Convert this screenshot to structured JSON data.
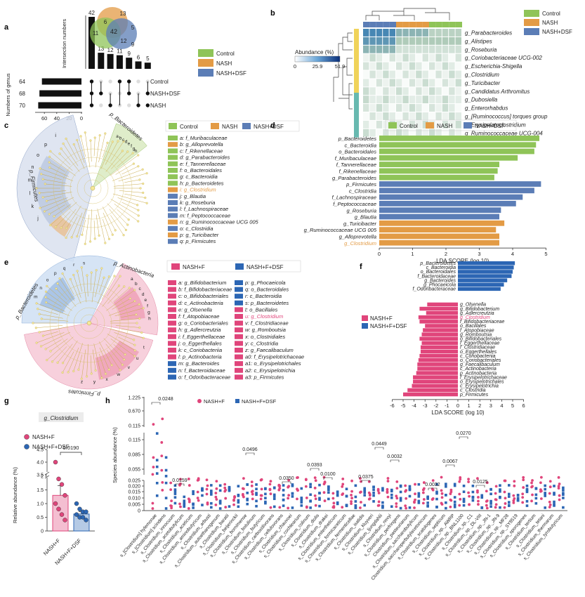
{
  "panel_labels": {
    "a": "a",
    "b": "b",
    "c": "c",
    "d": "d",
    "e": "e",
    "f": "f",
    "g": "g",
    "h": "h"
  },
  "colors": {
    "control": "#8fc458",
    "nash": "#e39b45",
    "dsf": "#5b7db6",
    "nashf": "#e0457b",
    "nashf_dsf": "#2c66b4"
  },
  "panel_a": {
    "ylabel": "Intersection numbers",
    "xlabel": "Numbers of genus",
    "venn": {
      "control": "11",
      "nash": "13",
      "dsf": "9",
      "control_nash": "6",
      "nash_dsf": "5",
      "control_dsf": "12",
      "all": "42"
    },
    "groups": [
      {
        "name": "Control",
        "count": "64"
      },
      {
        "name": "NASH+DSF",
        "count": "68"
      },
      {
        "name": "NASH",
        "count": "70"
      }
    ],
    "bar_ticks": [
      "60",
      "40",
      "20",
      "0"
    ],
    "legend": [
      "Control",
      "NASH",
      "NASH+DSF"
    ]
  },
  "chart_data": [
    {
      "type": "bar",
      "id": "a-intersections",
      "values": [
        42,
        13,
        12,
        11,
        9,
        6,
        5
      ],
      "ylim": [
        0,
        42
      ]
    },
    {
      "type": "bar",
      "id": "a-set-sizes",
      "categories": [
        "Control",
        "NASH+DSF",
        "NASH"
      ],
      "values": [
        64,
        68,
        70
      ],
      "ylim": [
        0,
        70
      ]
    },
    {
      "type": "heatmap",
      "id": "b",
      "rows": [
        "g_Parabacteroides",
        "g_Alistipes",
        "g_Roseburia",
        "g_Coriobacteriaceae UCG-002",
        "g_Escherichia-Shigella",
        "g_Clostridium",
        "g_Turicibacter",
        "g_Candidatus Arthromitus",
        "g_Dubosiella",
        "g_Enterorhabdus",
        "g_[Ruminococcus] torques group",
        "g_Erysipelatoclostridium",
        "g_Ruminococcaceae UCG-004"
      ],
      "legend_title": "Abundance (%)",
      "scale": [
        "0",
        "25.9",
        "51.9"
      ]
    },
    {
      "type": "bar",
      "id": "d",
      "orientation": "horizontal",
      "xlabel": "LDA SCORE (log 10)",
      "xticks": [
        "0",
        "1",
        "2",
        "3",
        "4",
        "5"
      ],
      "xlim": [
        0,
        5
      ],
      "categories": [
        "p_Bacteroidetes",
        "c_Bacteroidia",
        "o_Bacteroidales",
        "f_Muribaculaceae",
        "f_Tannerellaceae",
        "f_Rikenellaceae",
        "g_Parabacteroides",
        "p_Firmicutes",
        "c_Clostridia",
        "f_Lachnospiraceae",
        "f_Peptococcaceae",
        "g_Roseburia",
        "g_Blautia",
        "g_Turicibacter",
        "g_Ruminococcaceae UCG 005",
        "g_Alloprevotella",
        "g_Clostridium"
      ],
      "values": [
        4.8,
        4.7,
        4.65,
        4.15,
        3.6,
        3.55,
        3.45,
        4.85,
        4.65,
        4.3,
        4.1,
        3.65,
        3.6,
        3.75,
        3.5,
        3.6,
        3.6
      ],
      "groups": [
        "Control",
        "Control",
        "Control",
        "Control",
        "Control",
        "Control",
        "Control",
        "NASH+DSF",
        "NASH+DSF",
        "NASH+DSF",
        "NASH+DSF",
        "NASH+DSF",
        "NASH+DSF",
        "NASH",
        "NASH",
        "NASH",
        "NASH"
      ],
      "legend": [
        "Control",
        "NASH",
        "NASH+DSF"
      ]
    },
    {
      "type": "bar",
      "id": "f",
      "orientation": "horizontal",
      "xlabel": "LDA SCORE (log 10)",
      "xticks": [
        "-6",
        "-5",
        "-4",
        "-3",
        "-2",
        "-1",
        "0",
        "1",
        "2",
        "3",
        "4",
        "5",
        "6"
      ],
      "xlim": [
        -6,
        6
      ],
      "categories": [
        "p_Bacteroidetes",
        "c_Bacteroidia",
        "o_Bacteroidales",
        "f_Bacteroidaceae",
        "g_Bacteroides",
        "g_Phocaeicola",
        "f_Odoribacteraceae",
        "g_Olsenella",
        "g_Bifidobacterium",
        "g_Adlercreutzia",
        "g_Clostridium",
        "f_Bifidobacteriaceae",
        "o_Bacillales",
        "f_Atopobiaceae",
        "g_Romboutsia",
        "o_Bifidobacteriales",
        "f_Eggerthellaceae",
        "f_Clostridiaceae",
        "o_Eggerthellales",
        "c_Coriobacteriia",
        "o_Coriobacteriales",
        "g_Faecalibaculum",
        "c_Actinobacteria",
        "p_Actinobacteria",
        "f_Erysipelotrichaceae",
        "o_Erysipelotrichales",
        "c_Erysipelotrichia",
        "c_Clostridia",
        "p_Firmicutes"
      ],
      "values": [
        5.2,
        5.1,
        5.0,
        4.9,
        4.5,
        4.2,
        3.9,
        -2.8,
        -3.5,
        -2.9,
        -3.6,
        -3.5,
        -3.0,
        -3.2,
        -3.3,
        -3.5,
        -3.3,
        -3.4,
        -3.4,
        -3.5,
        -3.6,
        -3.7,
        -3.7,
        -3.8,
        -4.1,
        -4.1,
        -4.2,
        -4.6,
        -5.0
      ],
      "legend": [
        "NASH+F",
        "NASH+F+DSF"
      ]
    },
    {
      "type": "scatter",
      "id": "g",
      "title": "g_Clostridium",
      "ylabel": "Relative abundance (%)",
      "categories": [
        "NASH+F",
        "NASH+F+DSF"
      ],
      "p_value": "0.0190",
      "yticks": [
        "0",
        "0.5",
        "1.0",
        "1.5",
        "2",
        "3.5",
        "4.0",
        "4.5"
      ],
      "series": [
        {
          "name": "NASH+F",
          "values": [
            4.0,
            1.9,
            1.7,
            1.3,
            1.0,
            0.8,
            0.6,
            0.4
          ]
        },
        {
          "name": "NASH+F+DSF",
          "values": [
            1.0,
            0.8,
            0.7,
            0.7,
            0.6,
            0.5,
            0.5,
            0.4
          ]
        }
      ]
    },
    {
      "type": "scatter",
      "id": "h",
      "ylabel": "Species abundance (%)",
      "yticks": [
        "0",
        "0.005",
        "0.010",
        "0.015",
        "0.020",
        "0.025",
        "0.055",
        "0.085",
        "0.115",
        "0.115",
        "0.670",
        "1.225"
      ],
      "legend": [
        "NASH+F",
        "NASH+F+DSF"
      ],
      "p_values": [
        "0.0248",
        "0.0159",
        "0.0496",
        "0.0350",
        "0.0393",
        "0.0100",
        "0.0375",
        "0.0449",
        "0.0032",
        "0.0270",
        "0.0067",
        "0.0032",
        "0.0125"
      ],
      "categories": [
        "s_[Clostridium] hylemonae",
        "s_[Clostridium] scindens",
        "s_Clostridium_innocuum",
        "s_Clostridium_acetobutylicum",
        "s_Clostridium_aceticum",
        "s_Clostridium_aminobutyricum",
        "s_Clostridium_arbusti",
        "s_Clostridium_autoethanogenum",
        "s_Clostridium_baratii",
        "s_Clostridium_beijerinckii",
        "s_Clostridium_bornimense",
        "s_Clostridium_botulinum",
        "s_Clostridium_butyricum",
        "s_Clostridium_carboxidivorans",
        "s_Clostridium_cellulovorans",
        "s_Clostridium_chauvoei",
        "s_Clostridium_cochlearium",
        "s_Clostridium_colinum",
        "s_Clostridium_diolis",
        "s_Clostridium_drakei",
        "s_Clostridium_estertheticum",
        "s_Clostridium_formicaceticum",
        "s_Clostridium_fermenticellae",
        "s_Clostridium_isatidis",
        "s_Clostridium_kluyveri",
        "s_Clostridium_ljungdahlii",
        "s_Clostridium_novyi",
        "s_Clostridium_perfringens",
        "Clostridium_pasteurianum",
        "s_Clostridium_saccharobutylicum",
        "Clostridium_saccharoperbutylacetonicum",
        "s_Clostridium_scatologenes",
        "s_Clostridium_septicum",
        "s_Clostridium_sp._AWRP",
        "s_Clostridium_sp._BNL1100",
        "s_Clostridium_sp._C1",
        "s_Clostridium_sp._DL-VIII",
        "s_Clostridium_sp._JN-1",
        "s_Clostridium_sp._JN-9",
        "s_Clostridium_sp._MF28",
        "s_Clostridium_sp._SY8519",
        "s_Clostridium_sporogenes",
        "s_Clostridium_tertium",
        "s_Clostridium_tetani",
        "s_Clostridium_thermarum",
        "s_Clostridium_tyrobutyricum"
      ]
    }
  ],
  "panel_b": {
    "legend": [
      "Control",
      "NASH",
      "NASH+DSF"
    ],
    "legend_title": "Abundance (%)",
    "scale_min": "0",
    "scale_mid": "25.9",
    "scale_max": "51.9"
  },
  "panel_c": {
    "legend_header": [
      "Control",
      "NASH",
      "NASH+DSF"
    ],
    "ring_labels": {
      "bacteroidetes": "p_Bacteroidetes",
      "firmicutes": "p_Firmicutes"
    },
    "items": [
      {
        "key": "a: f_Muribaculaceae",
        "group": "Control"
      },
      {
        "key": "b: g_Alloprevotella",
        "group": "NASH"
      },
      {
        "key": "c: f_Rikenellaceae",
        "group": "Control"
      },
      {
        "key": "d: g_Parabacteroides",
        "group": "Control"
      },
      {
        "key": "e: f_Tannerellaceae",
        "group": "Control"
      },
      {
        "key": "f: o_Bacteroidales",
        "group": "Control"
      },
      {
        "key": "g: c_Bacteroidia",
        "group": "Control"
      },
      {
        "key": "h: p_Bacteroidetes",
        "group": "Control"
      },
      {
        "key": "i: g_Clostridium",
        "group": "NASH"
      },
      {
        "key": "j: g_Blautia",
        "group": "NASH+DSF"
      },
      {
        "key": "k: g_Roseburia",
        "group": "NASH+DSF"
      },
      {
        "key": "l: f_Lachnospiraceae",
        "group": "NASH+DSF"
      },
      {
        "key": "m: f_Peptococcaceae",
        "group": "NASH+DSF"
      },
      {
        "key": "n: g_Ruminococcaceae UCG 005",
        "group": "NASH"
      },
      {
        "key": "o: c_Clostridia",
        "group": "NASH+DSF"
      },
      {
        "key": "p: g_Turicibacter",
        "group": "NASH"
      },
      {
        "key": "q: p_Firmicutes",
        "group": "NASH+DSF"
      }
    ]
  },
  "panel_e": {
    "legend_header": [
      "NASH+F",
      "NASH+F+DSF"
    ],
    "ring_labels": {
      "actinobacteria": "p_Actinobacteria",
      "bacteroidetes": "p_Bacteroidetes",
      "firmicutes": "p_Firmicutes"
    },
    "col1": [
      {
        "key": "a: g_Bifidobacterium",
        "group": "NASH+F"
      },
      {
        "key": "b: f_Bifidobacteriaceae",
        "group": "NASH+F"
      },
      {
        "key": "c: o_Bifidobacteriales",
        "group": "NASH+F"
      },
      {
        "key": "d: c_Actinobacteria",
        "group": "NASH+F"
      },
      {
        "key": "e: g_Olsenella",
        "group": "NASH+F"
      },
      {
        "key": "f: f_Atopobiaceae",
        "group": "NASH+F"
      },
      {
        "key": "g: o_Coriobacteriales",
        "group": "NASH+F"
      },
      {
        "key": "h: g_Adlercreutzia",
        "group": "NASH+F"
      },
      {
        "key": "i: f_Eggerthellaceae",
        "group": "NASH+F"
      },
      {
        "key": "j: o_Eggerthellales",
        "group": "NASH+F"
      },
      {
        "key": "k: c_Coriobacteriia",
        "group": "NASH+F"
      },
      {
        "key": "l: p_Actinobacteria",
        "group": "NASH+F"
      },
      {
        "key": "m: g_Bacteroides",
        "group": "NASH+F+DSF"
      },
      {
        "key": "n: f_Bacteroidaceae",
        "group": "NASH+F+DSF"
      },
      {
        "key": "o: f_Odoribacteraceae",
        "group": "NASH+F+DSF"
      }
    ],
    "col2": [
      {
        "key": "p: g_Phocaeicola",
        "group": "NASH+F+DSF"
      },
      {
        "key": "q: o_Bacteroidales",
        "group": "NASH+F+DSF"
      },
      {
        "key": "r: c_Bacteroidia",
        "group": "NASH+F+DSF"
      },
      {
        "key": "s: p_Bacteroidetes",
        "group": "NASH+F+DSF"
      },
      {
        "key": "t: o_Bacillales",
        "group": "NASH+F"
      },
      {
        "key": "u: g_Clostridium",
        "group": "NASH+F"
      },
      {
        "key": "v: f_Clostridiaceae",
        "group": "NASH+F"
      },
      {
        "key": "w: g_Romboutsia",
        "group": "NASH+F"
      },
      {
        "key": "x: o_Clostridiales",
        "group": "NASH+F"
      },
      {
        "key": "y: c_Clostridia",
        "group": "NASH+F"
      },
      {
        "key": "z: g_Faecalibaculum",
        "group": "NASH+F"
      },
      {
        "key": "a0: f_Erysipelotrichaceae",
        "group": "NASH+F"
      },
      {
        "key": "a1: o_Erysipelotrichales",
        "group": "NASH+F"
      },
      {
        "key": "a2: c_Erysipelotrichia",
        "group": "NASH+F"
      },
      {
        "key": "a3: p_Firmicutes",
        "group": "NASH+F"
      }
    ]
  }
}
